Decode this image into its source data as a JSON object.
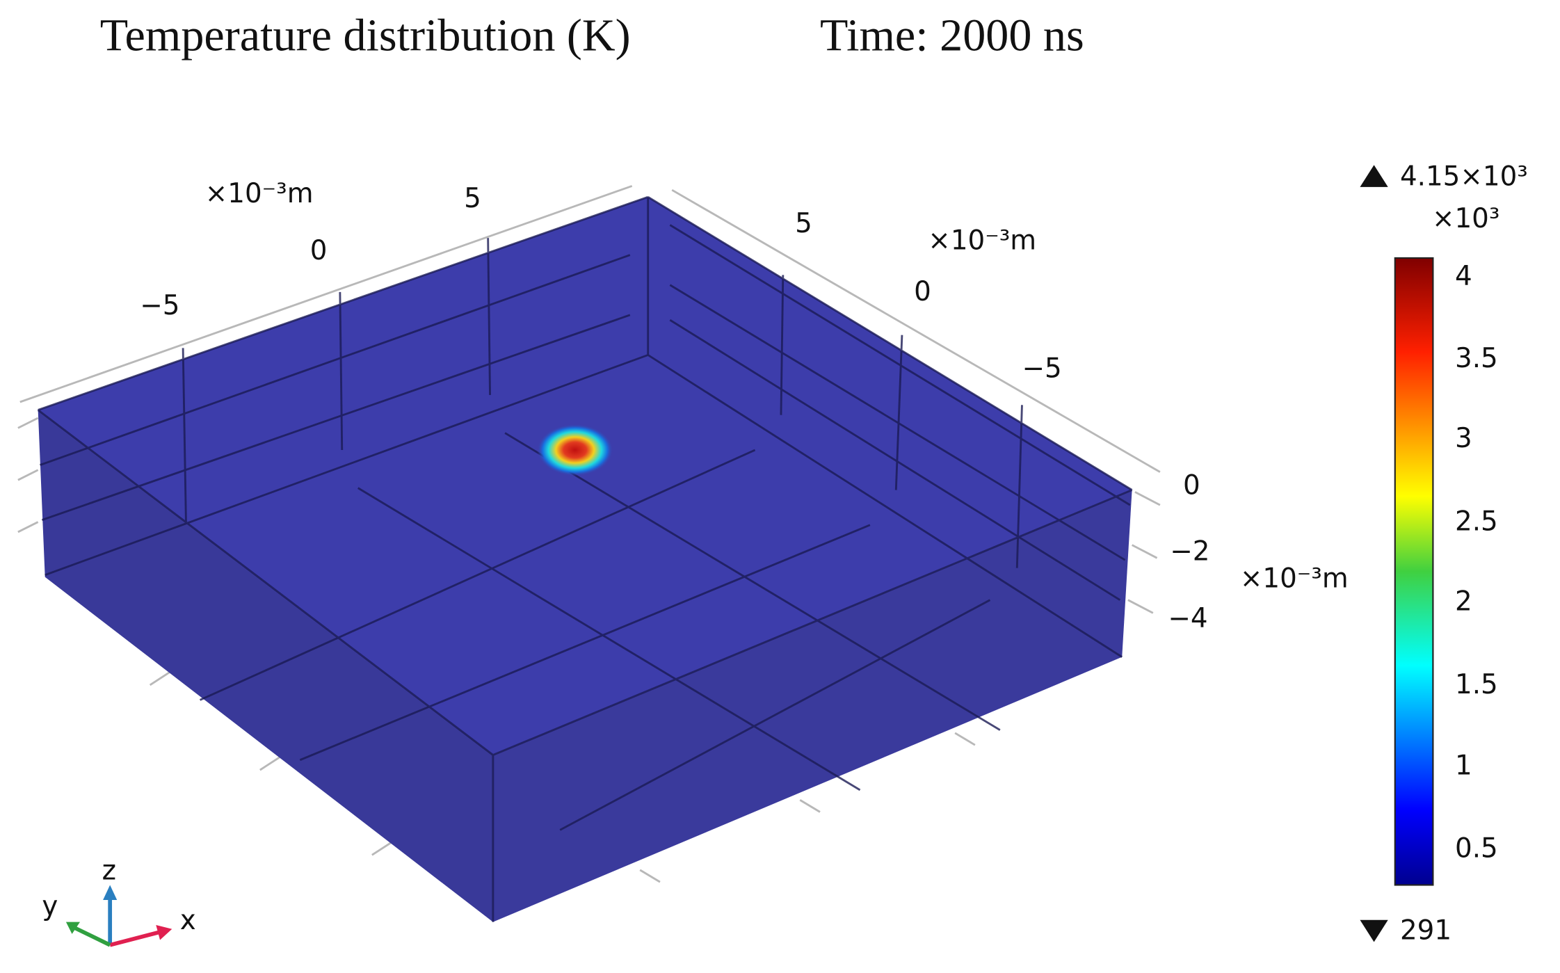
{
  "header": {
    "title": "Temperature distribution (K)",
    "time": "Time: 2000 ns"
  },
  "axes": {
    "x": {
      "unit": "×10⁻³m",
      "ticks": [
        "−5",
        "0",
        "5"
      ]
    },
    "y": {
      "unit": "×10⁻³m",
      "ticks": [
        "5",
        "0",
        "−5"
      ]
    },
    "z": {
      "unit": "×10⁻³m",
      "ticks": [
        "0",
        "−2",
        "−4"
      ]
    }
  },
  "colorbar": {
    "max": "4.15×10³",
    "scale": "×10³",
    "ticks": [
      "4",
      "3.5",
      "3",
      "2.5",
      "2",
      "1.5",
      "1",
      "0.5"
    ],
    "min": "291"
  },
  "triad": {
    "x": "x",
    "y": "y",
    "z": "z"
  }
}
